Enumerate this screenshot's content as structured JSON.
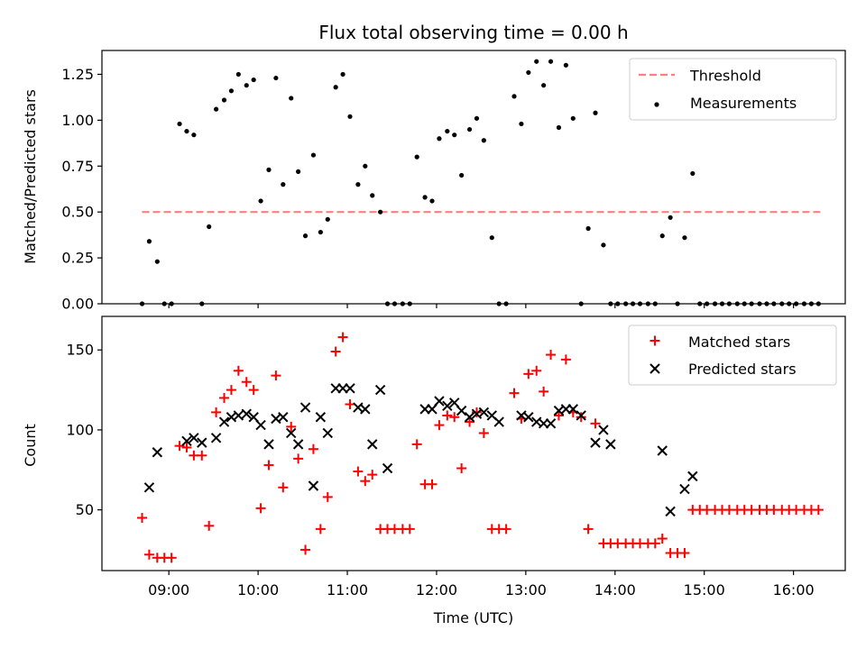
{
  "chart_data": [
    {
      "type": "scatter",
      "title": "Flux total observing time = 0.00 h",
      "xlabel": "",
      "ylabel": "Matched/Predicted stars",
      "ylim": [
        0,
        1.38
      ],
      "yticks": [
        "0.00",
        "0.25",
        "0.50",
        "0.75",
        "1.00",
        "1.25"
      ],
      "ytick_values": [
        0,
        0.25,
        0.5,
        0.75,
        1.0,
        1.25
      ],
      "xlim": [
        8.25,
        16.58
      ],
      "legend_position": "top-right",
      "legend": [
        "Threshold",
        "Measurements"
      ],
      "threshold": {
        "name": "Threshold",
        "value": 0.5,
        "x_start": 8.7,
        "x_end": 16.3,
        "color": "#ff7f7f"
      },
      "series": [
        {
          "name": "Measurements",
          "color": "#000000",
          "x": [
            8.7,
            8.78,
            8.87,
            8.95,
            9.03,
            9.12,
            9.2,
            9.28,
            9.37,
            9.45,
            9.53,
            9.62,
            9.7,
            9.78,
            9.87,
            9.95,
            10.03,
            10.12,
            10.2,
            10.28,
            10.37,
            10.45,
            10.53,
            10.62,
            10.7,
            10.78,
            10.87,
            10.95,
            11.03,
            11.12,
            11.2,
            11.28,
            11.37,
            11.45,
            11.53,
            11.62,
            11.7,
            11.78,
            11.87,
            11.95,
            12.03,
            12.12,
            12.2,
            12.28,
            12.37,
            12.45,
            12.53,
            12.62,
            12.7,
            12.78,
            12.87,
            12.95,
            13.03,
            13.12,
            13.2,
            13.28,
            13.37,
            13.45,
            13.53,
            13.62,
            13.7,
            13.78,
            13.87,
            13.95,
            14.03,
            14.12,
            14.2,
            14.28,
            14.37,
            14.45,
            14.53,
            14.62,
            14.7,
            14.78,
            14.87,
            14.95,
            15.03,
            15.12,
            15.2,
            15.28,
            15.37,
            15.45,
            15.53,
            15.62,
            15.7,
            15.78,
            15.87,
            15.95,
            16.03,
            16.12,
            16.2,
            16.28
          ],
          "y": [
            0.0,
            0.34,
            0.23,
            0.0,
            0.0,
            0.98,
            0.94,
            0.92,
            0.0,
            0.42,
            1.06,
            1.11,
            1.16,
            1.25,
            1.19,
            1.22,
            0.56,
            0.73,
            1.23,
            0.65,
            1.12,
            0.72,
            0.37,
            0.81,
            0.39,
            0.46,
            1.18,
            1.25,
            1.02,
            0.65,
            0.75,
            0.59,
            0.5,
            0.0,
            0.0,
            0.0,
            0.0,
            0.8,
            0.58,
            0.56,
            0.9,
            0.94,
            0.92,
            0.7,
            0.95,
            1.01,
            0.89,
            0.36,
            0.0,
            0.0,
            1.13,
            0.98,
            1.26,
            1.32,
            1.19,
            1.32,
            0.96,
            1.3,
            1.01,
            0.0,
            0.41,
            1.04,
            0.32,
            0.0,
            0.0,
            0.0,
            0.0,
            0.0,
            0.0,
            0.0,
            0.37,
            0.47,
            0.0,
            0.36,
            0.71,
            0.0,
            0.0,
            0.0,
            0.0,
            0.0,
            0.0,
            0.0,
            0.0,
            0.0,
            0.0,
            0.0,
            0.0,
            0.0,
            0.0,
            0.0,
            0.0,
            0.0
          ]
        }
      ]
    },
    {
      "type": "scatter",
      "title": "",
      "xlabel": "Time (UTC)",
      "ylabel": "Count",
      "ylim": [
        12,
        171
      ],
      "yticks": [
        "50",
        "100",
        "150"
      ],
      "ytick_values": [
        50,
        100,
        150
      ],
      "xlim": [
        8.25,
        16.58
      ],
      "xticks": [
        "09:00",
        "10:00",
        "11:00",
        "12:00",
        "13:00",
        "14:00",
        "15:00",
        "16:00"
      ],
      "xtick_values": [
        9,
        10,
        11,
        12,
        13,
        14,
        15,
        16
      ],
      "legend_position": "top-right",
      "legend": [
        "Matched stars",
        "Predicted stars"
      ],
      "x": [
        8.7,
        8.78,
        8.87,
        8.95,
        9.03,
        9.12,
        9.2,
        9.28,
        9.37,
        9.45,
        9.53,
        9.62,
        9.7,
        9.78,
        9.87,
        9.95,
        10.03,
        10.12,
        10.2,
        10.28,
        10.37,
        10.45,
        10.53,
        10.62,
        10.7,
        10.78,
        10.87,
        10.95,
        11.03,
        11.12,
        11.2,
        11.28,
        11.37,
        11.45,
        11.53,
        11.62,
        11.7,
        11.78,
        11.87,
        11.95,
        12.03,
        12.12,
        12.2,
        12.28,
        12.37,
        12.45,
        12.53,
        12.62,
        12.7,
        12.78,
        12.87,
        12.95,
        13.03,
        13.12,
        13.2,
        13.28,
        13.37,
        13.45,
        13.53,
        13.62,
        13.7,
        13.78,
        13.87,
        13.95,
        14.03,
        14.12,
        14.2,
        14.28,
        14.37,
        14.45,
        14.53,
        14.62,
        14.7,
        14.78,
        14.87,
        14.95,
        15.03,
        15.12,
        15.2,
        15.28,
        15.37,
        15.45,
        15.53,
        15.62,
        15.7,
        15.78,
        15.87,
        15.95,
        16.03,
        16.12,
        16.2,
        16.28
      ],
      "series": [
        {
          "name": "Matched stars",
          "marker": "plus",
          "color": "#ff0000",
          "y": [
            45,
            22,
            20,
            20,
            20,
            90,
            89,
            84,
            84,
            40,
            111,
            120,
            125,
            137,
            130,
            125,
            51,
            78,
            134,
            64,
            102,
            82,
            25,
            88,
            38,
            58,
            149,
            158,
            116,
            74,
            68,
            72,
            38,
            38,
            38,
            38,
            38,
            91,
            66,
            66,
            103,
            109,
            108,
            76,
            105,
            111,
            98,
            38,
            38,
            38,
            123,
            107,
            135,
            137,
            124,
            147,
            109,
            144,
            111,
            108,
            38,
            104,
            29,
            29,
            29,
            29,
            29,
            29,
            29,
            29,
            32,
            23,
            23,
            23,
            50,
            50,
            50,
            50,
            50,
            50,
            50,
            50,
            50,
            50,
            50,
            50,
            50,
            50,
            50,
            50,
            50,
            50
          ]
        },
        {
          "name": "Predicted stars",
          "marker": "x",
          "color": "#000000",
          "x": [
            8.78,
            8.87,
            9.2,
            9.28,
            9.37,
            9.53,
            9.62,
            9.7,
            9.78,
            9.87,
            9.95,
            10.03,
            10.12,
            10.2,
            10.28,
            10.37,
            10.45,
            10.53,
            10.62,
            10.7,
            10.78,
            10.87,
            10.95,
            11.03,
            11.12,
            11.2,
            11.28,
            11.37,
            11.45,
            11.87,
            11.95,
            12.03,
            12.12,
            12.2,
            12.28,
            12.37,
            12.45,
            12.53,
            12.62,
            12.7,
            12.95,
            13.03,
            13.12,
            13.2,
            13.28,
            13.37,
            13.45,
            13.53,
            13.62,
            13.78,
            13.87,
            13.95,
            14.53,
            14.62,
            14.78,
            14.87
          ],
          "y": [
            64,
            86,
            93,
            95,
            92,
            95,
            105,
            108,
            109,
            110,
            108,
            103,
            91,
            107,
            108,
            98,
            91,
            114,
            65,
            108,
            98,
            126,
            126,
            126,
            114,
            113,
            91,
            125,
            76,
            113,
            113,
            118,
            115,
            117,
            112,
            108,
            110,
            111,
            109,
            105,
            109,
            108,
            105,
            104,
            104,
            112,
            113,
            113,
            109,
            92,
            100,
            91,
            87,
            49,
            63,
            71
          ]
        }
      ]
    }
  ]
}
